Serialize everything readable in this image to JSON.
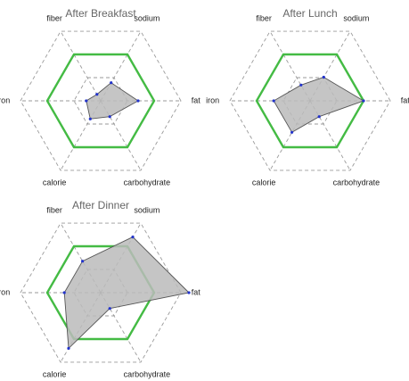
{
  "chart_data": {
    "type": "radar",
    "axes": [
      "fat",
      "sodium",
      "fiber",
      "iron",
      "calorie",
      "carbohydrate"
    ],
    "grid_levels": [
      0.5,
      1.0,
      1.5
    ],
    "reference": {
      "value": 1.0,
      "color": "#44bb44"
    },
    "area_color": "#bbbbbb",
    "point_color": "#2233cc",
    "charts": [
      {
        "title": "After Breakfast",
        "values": [
          0.7,
          0.39,
          0.14,
          0.27,
          0.39,
          0.34
        ]
      },
      {
        "title": "After Lunch",
        "values": [
          1.0,
          0.51,
          0.34,
          0.68,
          0.68,
          0.34
        ]
      },
      {
        "title": "After Dinner",
        "values": [
          1.65,
          1.2,
          0.68,
          0.68,
          1.2,
          0.34
        ]
      }
    ]
  }
}
